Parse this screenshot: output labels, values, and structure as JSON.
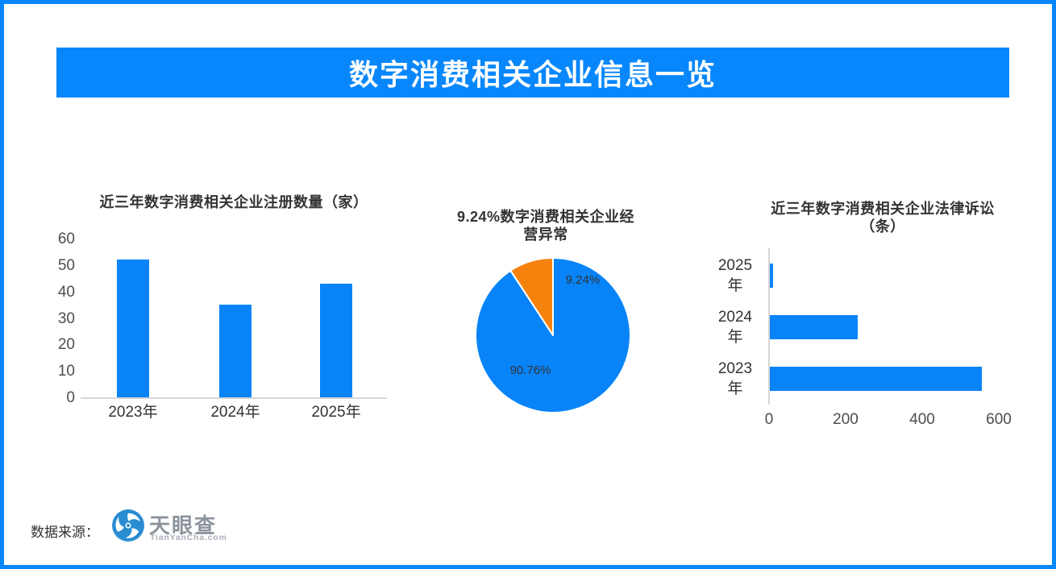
{
  "banner": {
    "title": "数字消费相关企业信息一览"
  },
  "colors": {
    "primary_blue": "#0787FB",
    "bar_blue": "#0884F8",
    "pie_orange": "#F5820D",
    "title_text": "#333333",
    "axis_text": "#4D4D4D",
    "axis_line": "#D6D6D6",
    "banner_text": "#FFFFFF",
    "logo_blue": "#2A8CD1",
    "logo_text_gray": "#8C939C"
  },
  "footer": {
    "source_label": "数据来源：",
    "logo_icon": "tianyancha-aperture-eye-icon",
    "logo_name": "天眼查",
    "logo_domain": "TianYanCha.com"
  },
  "chart_data": [
    {
      "type": "bar",
      "title": "近三年数字消费相关企业注册数量（家）",
      "categories": [
        "2023年",
        "2024年",
        "2025年"
      ],
      "values": [
        52,
        35,
        43
      ],
      "ylim": [
        0,
        60
      ],
      "yticks": [
        0,
        10,
        20,
        30,
        40,
        50,
        60
      ],
      "grid": false,
      "legend": false,
      "bar_color": "#0884F8"
    },
    {
      "type": "pie",
      "title": "9.24%数字消费相关企业经营异常",
      "title_lines": [
        "9.24%数字消费相关企业经",
        "营异常"
      ],
      "slices": [
        {
          "label": "90.76%",
          "value": 90.76,
          "color": "#0884F8"
        },
        {
          "label": "9.24%",
          "value": 9.24,
          "color": "#F5820D"
        }
      ],
      "start_angle": "top",
      "legend": false
    },
    {
      "type": "bar-horizontal",
      "title": "近三年数字消费相关企业法律诉讼（条）",
      "title_lines": [
        "近三年数字消费相关企业法律诉讼",
        "（条）"
      ],
      "categories": [
        "2025年",
        "2024年",
        "2023年"
      ],
      "values": [
        8,
        230,
        553
      ],
      "xlim": [
        0,
        600
      ],
      "xticks": [
        0,
        200,
        400,
        600
      ],
      "grid": false,
      "legend": false,
      "bar_color": "#0884F8"
    }
  ]
}
